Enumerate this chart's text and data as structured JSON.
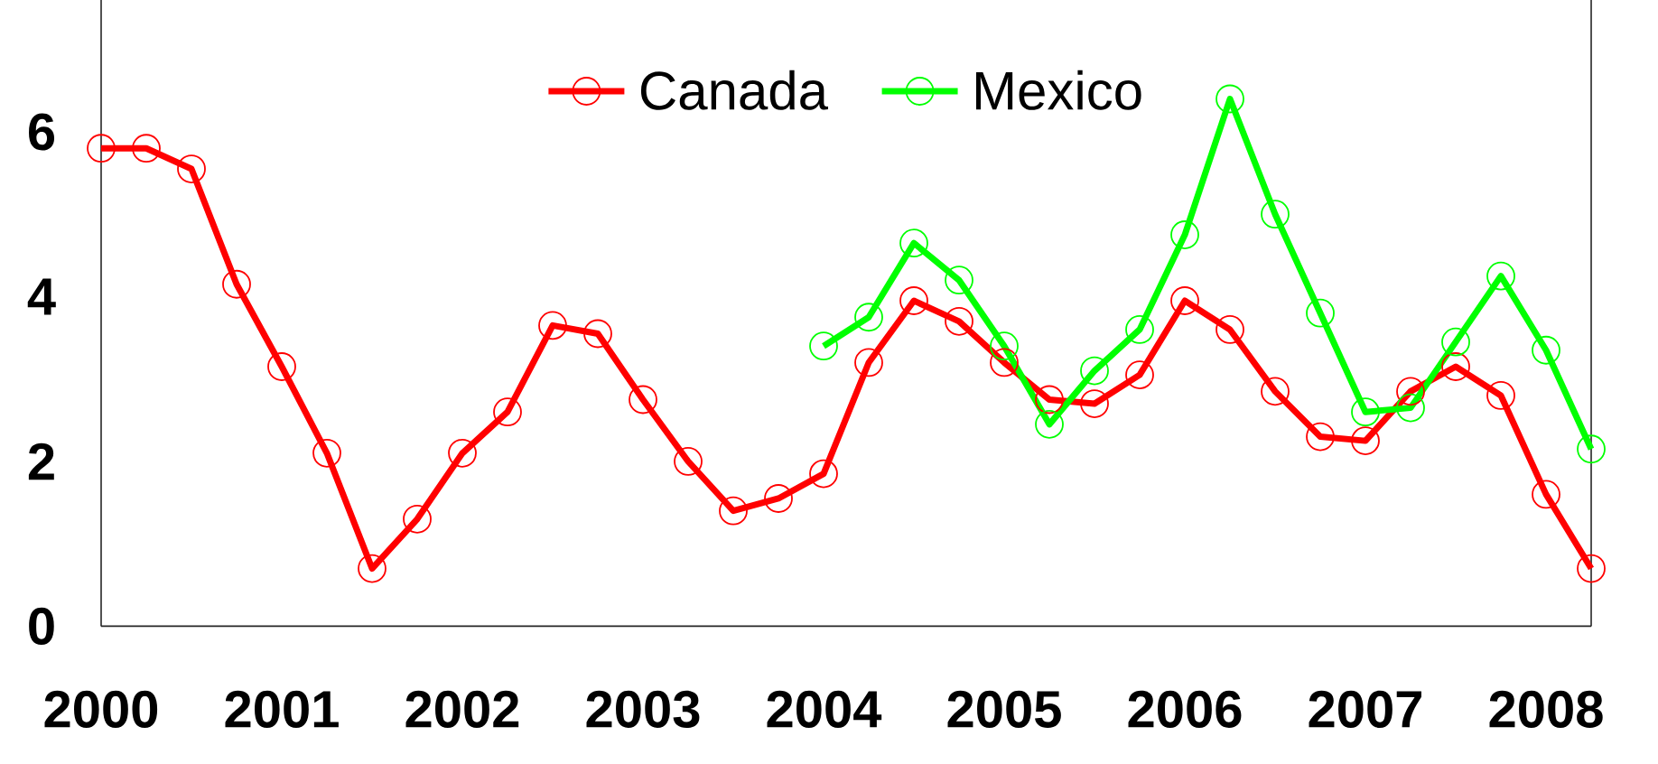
{
  "chart_data": {
    "type": "line",
    "x": [
      2000,
      2000.25,
      2000.5,
      2000.75,
      2001,
      2001.25,
      2001.5,
      2001.75,
      2002,
      2002.25,
      2002.5,
      2002.75,
      2003,
      2003.25,
      2003.5,
      2003.75,
      2004,
      2004.25,
      2004.5,
      2004.75,
      2005,
      2005.25,
      2005.5,
      2005.75,
      2006,
      2006.25,
      2006.5,
      2006.75,
      2007,
      2007.25,
      2007.5,
      2007.75,
      2008,
      2008.25
    ],
    "series": [
      {
        "name": "Canada",
        "color": "#ff0000",
        "values": [
          5.8,
          5.8,
          5.55,
          4.15,
          3.15,
          2.1,
          0.7,
          1.3,
          2.1,
          2.6,
          3.65,
          3.55,
          2.75,
          2.0,
          1.4,
          1.55,
          1.85,
          3.2,
          3.95,
          3.7,
          3.2,
          2.75,
          2.7,
          3.05,
          3.95,
          3.6,
          2.85,
          2.3,
          2.25,
          2.85,
          3.15,
          2.8,
          1.6,
          0.7
        ]
      },
      {
        "name": "Mexico",
        "color": "#00ff00",
        "values": [
          null,
          null,
          null,
          null,
          null,
          null,
          null,
          null,
          null,
          null,
          null,
          null,
          null,
          null,
          null,
          null,
          3.4,
          3.75,
          4.65,
          4.2,
          3.4,
          2.45,
          3.1,
          3.6,
          4.75,
          6.4,
          5.0,
          3.8,
          2.6,
          2.65,
          3.45,
          4.25,
          3.35,
          2.15
        ]
      }
    ],
    "xlim": [
      2000,
      2008.25
    ],
    "ylim": [
      0,
      7.6
    ],
    "xticks": [
      2000,
      2001,
      2002,
      2003,
      2004,
      2005,
      2006,
      2007,
      2008
    ],
    "yticks": [
      0,
      2,
      4,
      6
    ],
    "legend": "top",
    "marker": "circle",
    "line_style": "solid"
  }
}
